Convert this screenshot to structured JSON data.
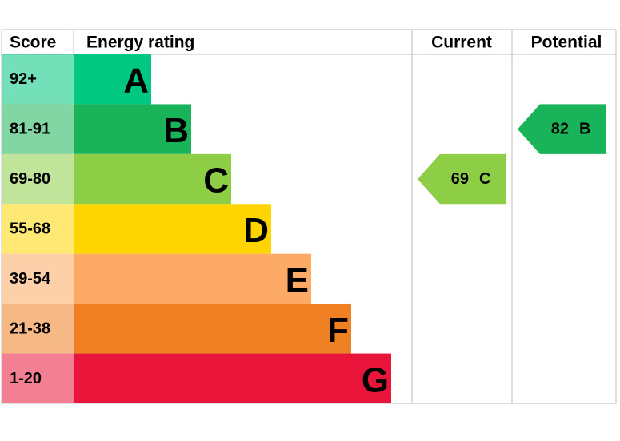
{
  "header": {
    "score": "Score",
    "rating": "Energy rating",
    "current": "Current",
    "potential": "Potential"
  },
  "bands": [
    {
      "score": "92+",
      "letter": "A",
      "color": "#00c781"
    },
    {
      "score": "81-91",
      "letter": "B",
      "color": "#19b459"
    },
    {
      "score": "69-80",
      "letter": "C",
      "color": "#8dce46"
    },
    {
      "score": "55-68",
      "letter": "D",
      "color": "#ffd500"
    },
    {
      "score": "39-54",
      "letter": "E",
      "color": "#fcaa65"
    },
    {
      "score": "21-38",
      "letter": "F",
      "color": "#ef8023"
    },
    {
      "score": "1-20",
      "letter": "G",
      "color": "#e9153b"
    }
  ],
  "current": {
    "value": 69,
    "letter": "C"
  },
  "potential": {
    "value": 82,
    "letter": "B"
  }
}
